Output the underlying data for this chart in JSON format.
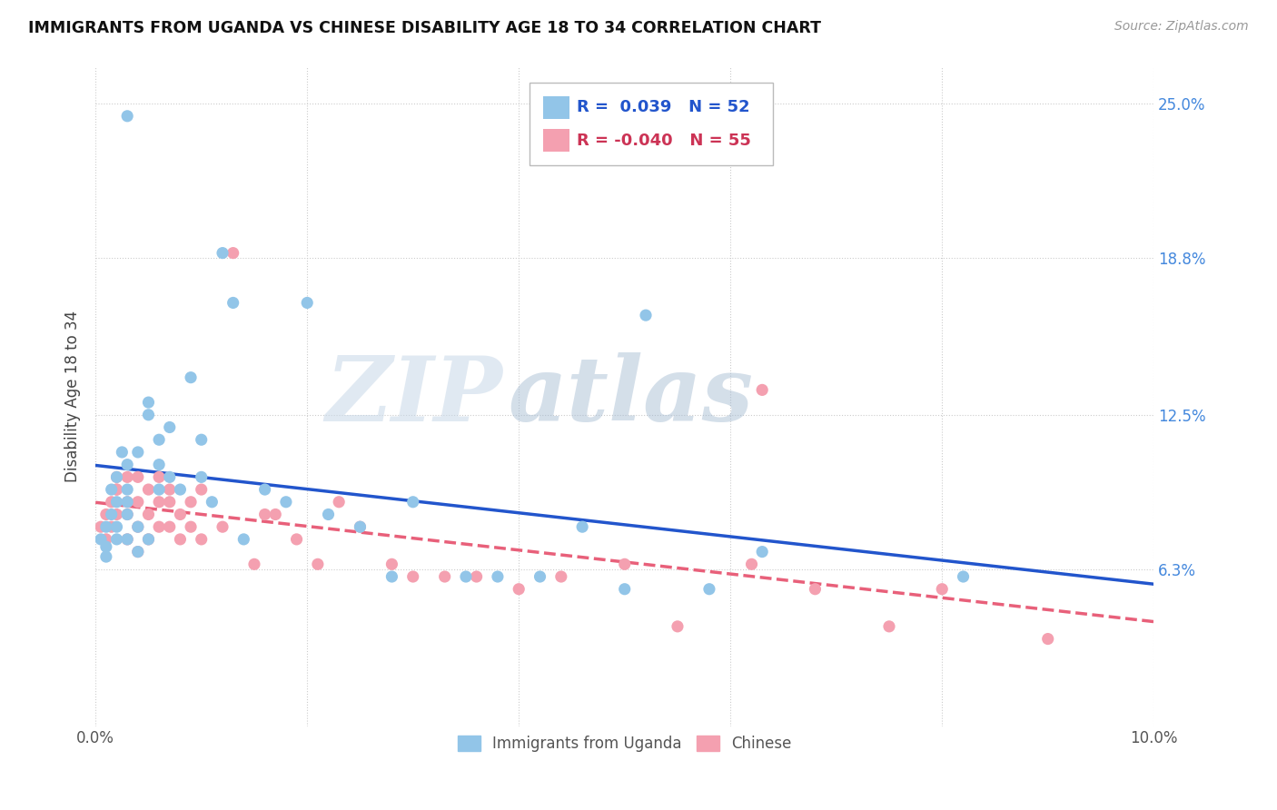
{
  "title": "IMMIGRANTS FROM UGANDA VS CHINESE DISABILITY AGE 18 TO 34 CORRELATION CHART",
  "source": "Source: ZipAtlas.com",
  "ylabel": "Disability Age 18 to 34",
  "xlim": [
    0.0,
    0.1
  ],
  "ylim": [
    0.0,
    0.265
  ],
  "xtick_positions": [
    0.0,
    0.02,
    0.04,
    0.06,
    0.08,
    0.1
  ],
  "xticklabels": [
    "0.0%",
    "",
    "",
    "",
    "",
    "10.0%"
  ],
  "ytick_positions": [
    0.063,
    0.125,
    0.188,
    0.25
  ],
  "yticklabels": [
    "6.3%",
    "12.5%",
    "18.8%",
    "25.0%"
  ],
  "blue_R": 0.039,
  "blue_N": 52,
  "pink_R": -0.04,
  "pink_N": 55,
  "legend_labels": [
    "Immigrants from Uganda",
    "Chinese"
  ],
  "blue_color": "#92C5E8",
  "pink_color": "#F4A0B0",
  "blue_line_color": "#2255CC",
  "pink_line_color": "#E8607A",
  "watermark_zip": "ZIP",
  "watermark_atlas": "atlas",
  "grid_color": "#CCCCCC",
  "background_color": "#FFFFFF",
  "blue_scatter_x": [
    0.0005,
    0.001,
    0.001,
    0.001,
    0.0015,
    0.0015,
    0.002,
    0.002,
    0.002,
    0.002,
    0.0025,
    0.003,
    0.003,
    0.003,
    0.003,
    0.003,
    0.004,
    0.004,
    0.004,
    0.005,
    0.005,
    0.005,
    0.006,
    0.006,
    0.006,
    0.007,
    0.007,
    0.008,
    0.009,
    0.01,
    0.01,
    0.011,
    0.012,
    0.013,
    0.014,
    0.016,
    0.018,
    0.02,
    0.022,
    0.025,
    0.028,
    0.03,
    0.035,
    0.038,
    0.042,
    0.046,
    0.05,
    0.052,
    0.058,
    0.063,
    0.082,
    0.003
  ],
  "blue_scatter_y": [
    0.075,
    0.068,
    0.072,
    0.08,
    0.085,
    0.095,
    0.075,
    0.08,
    0.09,
    0.1,
    0.11,
    0.075,
    0.085,
    0.09,
    0.095,
    0.105,
    0.07,
    0.08,
    0.11,
    0.075,
    0.125,
    0.13,
    0.095,
    0.105,
    0.115,
    0.1,
    0.12,
    0.095,
    0.14,
    0.1,
    0.115,
    0.09,
    0.19,
    0.17,
    0.075,
    0.095,
    0.09,
    0.17,
    0.085,
    0.08,
    0.06,
    0.09,
    0.06,
    0.06,
    0.06,
    0.08,
    0.055,
    0.165,
    0.055,
    0.07,
    0.06,
    0.245
  ],
  "pink_scatter_x": [
    0.0005,
    0.001,
    0.001,
    0.0015,
    0.0015,
    0.002,
    0.002,
    0.002,
    0.002,
    0.003,
    0.003,
    0.003,
    0.003,
    0.004,
    0.004,
    0.004,
    0.004,
    0.005,
    0.005,
    0.005,
    0.006,
    0.006,
    0.006,
    0.007,
    0.007,
    0.007,
    0.008,
    0.008,
    0.009,
    0.009,
    0.01,
    0.01,
    0.012,
    0.013,
    0.015,
    0.016,
    0.017,
    0.019,
    0.021,
    0.023,
    0.025,
    0.028,
    0.03,
    0.033,
    0.036,
    0.04,
    0.044,
    0.05,
    0.055,
    0.062,
    0.068,
    0.075,
    0.08,
    0.09,
    0.063
  ],
  "pink_scatter_y": [
    0.08,
    0.075,
    0.085,
    0.08,
    0.09,
    0.095,
    0.1,
    0.085,
    0.095,
    0.075,
    0.085,
    0.09,
    0.1,
    0.07,
    0.08,
    0.09,
    0.1,
    0.075,
    0.085,
    0.095,
    0.08,
    0.09,
    0.1,
    0.08,
    0.09,
    0.095,
    0.075,
    0.085,
    0.08,
    0.09,
    0.075,
    0.095,
    0.08,
    0.19,
    0.065,
    0.085,
    0.085,
    0.075,
    0.065,
    0.09,
    0.08,
    0.065,
    0.06,
    0.06,
    0.06,
    0.055,
    0.06,
    0.065,
    0.04,
    0.065,
    0.055,
    0.04,
    0.055,
    0.035,
    0.135
  ]
}
